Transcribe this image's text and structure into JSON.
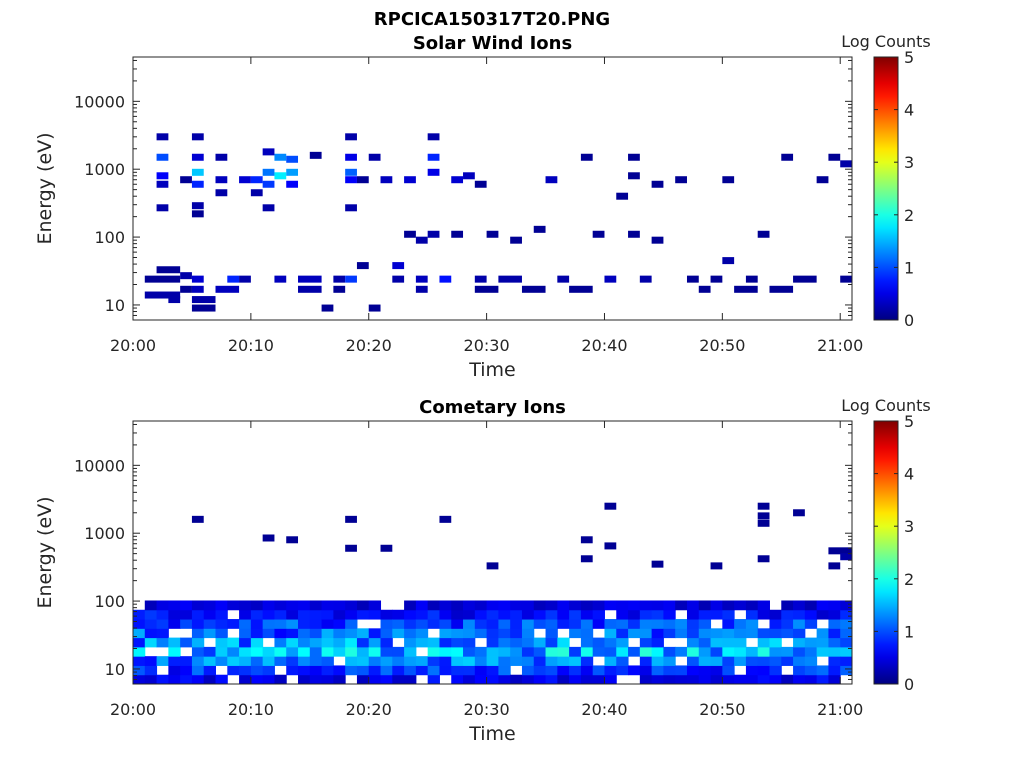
{
  "figure": {
    "title_line1": "RPCICA150317T20.PNG"
  },
  "chart_data": [
    {
      "type": "heatmap",
      "title": "Solar Wind Ions",
      "xlabel": "Time",
      "ylabel": "Energy (eV)",
      "x_range": [
        "20:00",
        "21:01"
      ],
      "x_ticks": [
        "20:00",
        "20:10",
        "20:20",
        "20:30",
        "20:40",
        "20:50",
        "21:00"
      ],
      "y_scale": "log",
      "y_range": [
        6,
        45000
      ],
      "y_ticks": [
        10,
        100,
        1000,
        10000
      ],
      "colorbar": {
        "label": "Log Counts",
        "range": [
          0,
          5
        ],
        "ticks": [
          0,
          1,
          2,
          3,
          4,
          5
        ],
        "colormap": "jet"
      },
      "cells": [
        [
          1,
          4,
          24,
          0.1
        ],
        [
          1,
          4,
          14,
          0.2
        ],
        [
          2,
          4,
          33,
          0.1
        ],
        [
          2,
          3,
          270,
          0.2
        ],
        [
          2,
          3,
          600,
          0.3
        ],
        [
          2,
          3,
          800,
          0.6
        ],
        [
          2,
          3,
          1500,
          1.0
        ],
        [
          2,
          3,
          3000,
          0.2
        ],
        [
          3,
          4,
          12,
          0.2
        ],
        [
          4,
          5,
          700,
          0.1
        ],
        [
          4,
          5,
          27,
          0.2
        ],
        [
          4,
          5,
          17,
          0.1
        ],
        [
          5,
          6,
          24,
          0.4
        ],
        [
          5,
          6,
          17,
          0.3
        ],
        [
          5,
          7,
          12,
          0.2
        ],
        [
          5,
          7,
          9,
          0.1
        ],
        [
          5,
          6,
          600,
          0.8
        ],
        [
          5,
          6,
          900,
          1.6
        ],
        [
          5,
          6,
          1500,
          0.4
        ],
        [
          5,
          6,
          3000,
          0.2
        ],
        [
          5,
          6,
          220,
          0.1
        ],
        [
          5,
          6,
          290,
          0.2
        ],
        [
          7,
          8,
          700,
          0.3
        ],
        [
          7,
          8,
          1500,
          0.2
        ],
        [
          8,
          9,
          24,
          0.8
        ],
        [
          7,
          9,
          17,
          0.3
        ],
        [
          7,
          8,
          450,
          0.2
        ],
        [
          9,
          10,
          24,
          0.2
        ],
        [
          9,
          10,
          700,
          0.4
        ],
        [
          10,
          11,
          700,
          0.8
        ],
        [
          10,
          11,
          450,
          0.2
        ],
        [
          11,
          12,
          900,
          1.2
        ],
        [
          11,
          12,
          600,
          0.9
        ],
        [
          11,
          12,
          1800,
          0.3
        ],
        [
          11,
          12,
          270,
          0.2
        ],
        [
          12,
          13,
          800,
          1.8
        ],
        [
          12,
          13,
          1500,
          1.3
        ],
        [
          12,
          13,
          24,
          0.3
        ],
        [
          13,
          14,
          1400,
          1.0
        ],
        [
          13,
          14,
          900,
          1.4
        ],
        [
          13,
          14,
          600,
          0.6
        ],
        [
          14,
          16,
          24,
          0.3
        ],
        [
          14,
          16,
          17,
          0.2
        ],
        [
          15,
          16,
          1600,
          0.1
        ],
        [
          16,
          17,
          9,
          0.1
        ],
        [
          17,
          18,
          24,
          0.2
        ],
        [
          17,
          18,
          17,
          0.1
        ],
        [
          18,
          19,
          900,
          1.1
        ],
        [
          18,
          19,
          1500,
          0.5
        ],
        [
          18,
          19,
          700,
          0.6
        ],
        [
          18,
          19,
          24,
          0.9
        ],
        [
          18,
          19,
          3000,
          0.2
        ],
        [
          18,
          19,
          270,
          0.2
        ],
        [
          19,
          20,
          700,
          0.1
        ],
        [
          19,
          20,
          38,
          0.1
        ],
        [
          20,
          21,
          1500,
          0.2
        ],
        [
          20,
          21,
          9,
          0.1
        ],
        [
          21,
          22,
          700,
          0.3
        ],
        [
          22,
          23,
          38,
          0.4
        ],
        [
          22,
          23,
          24,
          0.2
        ],
        [
          23,
          24,
          700,
          0.4
        ],
        [
          23,
          24,
          110,
          0.1
        ],
        [
          24,
          25,
          24,
          0.3
        ],
        [
          24,
          25,
          17,
          0.2
        ],
        [
          24,
          25,
          90,
          0.2
        ],
        [
          25,
          26,
          1500,
          0.8
        ],
        [
          25,
          26,
          900,
          0.5
        ],
        [
          25,
          26,
          110,
          0.2
        ],
        [
          25,
          26,
          3000,
          0.2
        ],
        [
          26,
          27,
          24,
          0.7
        ],
        [
          27,
          28,
          700,
          0.4
        ],
        [
          27,
          28,
          110,
          0.1
        ],
        [
          28,
          29,
          800,
          0.3
        ],
        [
          29,
          30,
          24,
          0.2
        ],
        [
          29,
          30,
          600,
          0.1
        ],
        [
          29,
          31,
          17,
          0.1
        ],
        [
          30,
          31,
          110,
          0.1
        ],
        [
          31,
          33,
          24,
          0.2
        ],
        [
          32,
          33,
          90,
          0.1
        ],
        [
          33,
          35,
          17,
          0.1
        ],
        [
          34,
          35,
          130,
          0.1
        ],
        [
          35,
          36,
          700,
          0.3
        ],
        [
          36,
          37,
          24,
          0.2
        ],
        [
          37,
          39,
          17,
          0.1
        ],
        [
          38,
          39,
          1500,
          0.1
        ],
        [
          39,
          40,
          110,
          0.1
        ],
        [
          40,
          41,
          24,
          0.3
        ],
        [
          41,
          42,
          400,
          0.1
        ],
        [
          42,
          43,
          800,
          0.1
        ],
        [
          42,
          43,
          1500,
          0.1
        ],
        [
          42,
          43,
          110,
          0.1
        ],
        [
          43,
          44,
          24,
          0.2
        ],
        [
          44,
          45,
          600,
          0.1
        ],
        [
          44,
          45,
          90,
          0.1
        ],
        [
          46,
          47,
          700,
          0.1
        ],
        [
          47,
          48,
          24,
          0.1
        ],
        [
          48,
          49,
          17,
          0.1
        ],
        [
          49,
          50,
          24,
          0.1
        ],
        [
          50,
          51,
          45,
          0.2
        ],
        [
          50,
          51,
          700,
          0.1
        ],
        [
          51,
          53,
          17,
          0.1
        ],
        [
          52,
          53,
          24,
          0.1
        ],
        [
          53,
          54,
          110,
          0.1
        ],
        [
          54,
          56,
          17,
          0.1
        ],
        [
          55,
          56,
          1500,
          0.1
        ],
        [
          56,
          58,
          24,
          0.1
        ],
        [
          58,
          59,
          700,
          0.1
        ],
        [
          59,
          60,
          1500,
          0.1
        ],
        [
          60,
          61,
          1200,
          0.2
        ],
        [
          60,
          61,
          24,
          0.1
        ]
      ]
    },
    {
      "type": "heatmap",
      "title": "Cometary Ions",
      "xlabel": "Time",
      "ylabel": "Energy (eV)",
      "x_range": [
        "20:00",
        "21:01"
      ],
      "x_ticks": [
        "20:00",
        "20:10",
        "20:20",
        "20:30",
        "20:40",
        "20:50",
        "21:00"
      ],
      "y_scale": "log",
      "y_range": [
        6,
        45000
      ],
      "y_ticks": [
        10,
        100,
        1000,
        10000
      ],
      "colorbar": {
        "label": "Log Counts",
        "range": [
          0,
          5
        ],
        "ticks": [
          0,
          1,
          2,
          3,
          4,
          5
        ],
        "colormap": "jet"
      },
      "band": {
        "profile": [
          0.5,
          0.8,
          1.1,
          1.4,
          1.2,
          1.0,
          0.9,
          0.6,
          0.4
        ]
      },
      "cells": [
        [
          5,
          6,
          1600,
          0.1
        ],
        [
          11,
          12,
          850,
          0.1
        ],
        [
          13,
          14,
          800,
          0.1
        ],
        [
          18,
          19,
          1600,
          0.1
        ],
        [
          18,
          19,
          600,
          0.1
        ],
        [
          21,
          22,
          600,
          0.1
        ],
        [
          26,
          27,
          1600,
          0.1
        ],
        [
          30,
          31,
          330,
          0.1
        ],
        [
          38,
          39,
          800,
          0.1
        ],
        [
          38,
          39,
          420,
          0.1
        ],
        [
          40,
          41,
          2500,
          0.1
        ],
        [
          40,
          41,
          650,
          0.1
        ],
        [
          44,
          45,
          350,
          0.1
        ],
        [
          49,
          50,
          330,
          0.1
        ],
        [
          53,
          54,
          2500,
          0.1
        ],
        [
          53,
          54,
          1800,
          0.1
        ],
        [
          53,
          54,
          1400,
          0.1
        ],
        [
          53,
          54,
          420,
          0.1
        ],
        [
          56,
          57,
          2000,
          0.1
        ],
        [
          59,
          61,
          550,
          0.1
        ],
        [
          60,
          61,
          450,
          0.2
        ],
        [
          59,
          60,
          330,
          0.1
        ]
      ]
    }
  ]
}
